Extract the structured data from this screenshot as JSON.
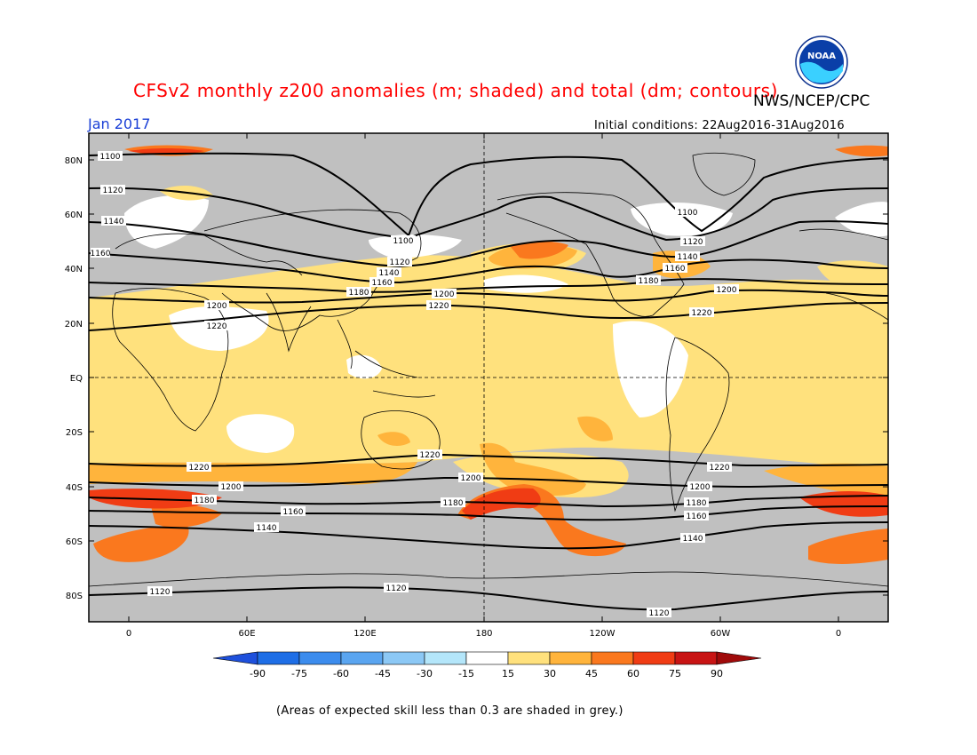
{
  "header": {
    "title": "CFSv2 monthly z200 anomalies (m; shaded) and total (dm; contours)",
    "org": "NWS/NCEP/CPC",
    "month": "Jan 2017",
    "initial_conditions": "Initial conditions: 22Aug2016-31Aug2016",
    "logo_text": "NOAA"
  },
  "axes": {
    "lat_labels": [
      "80N",
      "60N",
      "40N",
      "20N",
      "EQ",
      "20S",
      "40S",
      "60S",
      "80S"
    ],
    "lon_labels": [
      "0",
      "60E",
      "120E",
      "180",
      "120W",
      "60W",
      "0"
    ]
  },
  "contours": [
    {
      "label": "1100",
      "value": 1100
    },
    {
      "label": "1120",
      "value": 1120
    },
    {
      "label": "1140",
      "value": 1140
    },
    {
      "label": "1160",
      "value": 1160
    },
    {
      "label": "1180",
      "value": 1180
    },
    {
      "label": "1200",
      "value": 1200
    },
    {
      "label": "1220",
      "value": 1220
    }
  ],
  "colorbar": {
    "ticks": [
      "-90",
      "-75",
      "-60",
      "-45",
      "-30",
      "-15",
      "15",
      "30",
      "45",
      "60",
      "75",
      "90"
    ],
    "colors": [
      "#1e6ee6",
      "#3c8ced",
      "#5aa5f0",
      "#8cc8f5",
      "#b4e6fa",
      "#ffffff",
      "#ffe17d",
      "#ffb43c",
      "#fa781e",
      "#f03c14",
      "#c81414"
    ],
    "left_arrow_color": "#1e50dc",
    "right_arrow_color": "#a00a0a"
  },
  "colors": {
    "grey": "#c0c0c0",
    "light": "#ffe17d",
    "medium": "#ffb43c",
    "strong": "#fa781e",
    "stronger": "#f03c14"
  },
  "footer": {
    "note": "(Areas of expected skill less than 0.3 are shaded in grey.)"
  }
}
